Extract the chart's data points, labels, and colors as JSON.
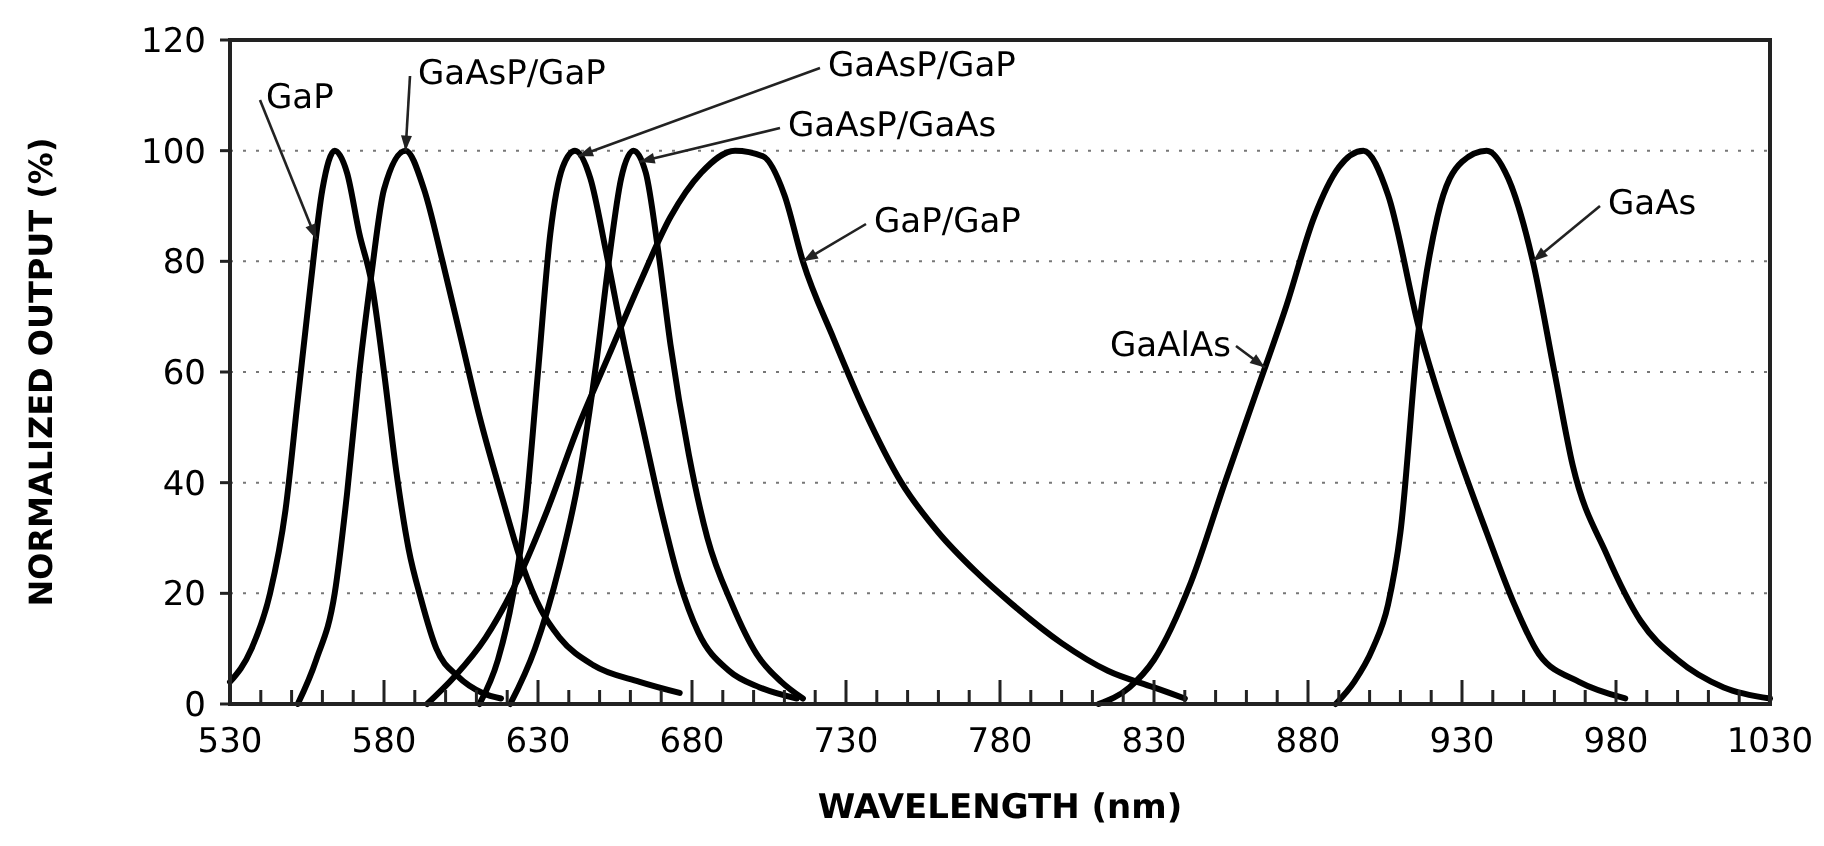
{
  "chart_data": {
    "type": "line",
    "xlabel": "WAVELENGTH (nm)",
    "ylabel": "NORMALIZED OUTPUT (%)",
    "xlim": [
      530,
      1030
    ],
    "ylim": [
      0,
      120
    ],
    "xticks": [
      530,
      {
        "value": 540,
        "label": null
      },
      {
        "value": 550,
        "label": null
      },
      {
        "value": 560,
        "label": null
      },
      {
        "value": 570,
        "label": null
      },
      580,
      {
        "value": 590,
        "label": null
      },
      {
        "value": 600,
        "label": null
      },
      {
        "value": 610,
        "label": null
      },
      {
        "value": 620,
        "label": null
      },
      630,
      {
        "value": 640,
        "label": null
      },
      {
        "value": 650,
        "label": null
      },
      {
        "value": 660,
        "label": null
      },
      {
        "value": 670,
        "label": null
      },
      680,
      {
        "value": 690,
        "label": null
      },
      {
        "value": 700,
        "label": null
      },
      {
        "value": 710,
        "label": null
      },
      {
        "value": 720,
        "label": null
      },
      730,
      {
        "value": 740,
        "label": null
      },
      {
        "value": 750,
        "label": null
      },
      {
        "value": 760,
        "label": null
      },
      {
        "value": 770,
        "label": null
      },
      780,
      {
        "value": 790,
        "label": null
      },
      {
        "value": 800,
        "label": null
      },
      {
        "value": 810,
        "label": null
      },
      {
        "value": 820,
        "label": null
      },
      830,
      {
        "value": 840,
        "label": null
      },
      {
        "value": 850,
        "label": null
      },
      {
        "value": 860,
        "label": null
      },
      {
        "value": 870,
        "label": null
      },
      880,
      {
        "value": 890,
        "label": null
      },
      {
        "value": 900,
        "label": null
      },
      {
        "value": 910,
        "label": null
      },
      {
        "value": 920,
        "label": null
      },
      930,
      {
        "value": 940,
        "label": null
      },
      {
        "value": 950,
        "label": null
      },
      {
        "value": 960,
        "label": null
      },
      {
        "value": 970,
        "label": null
      },
      980,
      {
        "value": 990,
        "label": null
      },
      {
        "value": 1000,
        "label": null
      },
      {
        "value": 1010,
        "label": null
      },
      {
        "value": 1020,
        "label": null
      },
      1030
    ],
    "yticks": [
      0,
      20,
      40,
      60,
      80,
      100,
      120
    ],
    "grid": "y",
    "marker": "none",
    "line_style": "solid",
    "series": [
      {
        "name": "GaP",
        "color": "#000000",
        "x": [
          530,
          537,
          543,
          548,
          552,
          556,
          560,
          564,
          568,
          572,
          576,
          580,
          584,
          588,
          592,
          597,
          604,
          612,
          618
        ],
        "values": [
          4,
          10,
          20,
          35,
          55,
          75,
          93,
          100,
          96,
          85,
          76,
          60,
          42,
          28,
          19,
          10,
          5,
          2,
          1
        ]
      },
      {
        "name": "GaAsP/GaP",
        "color": "#000000",
        "x": [
          552,
          558,
          564,
          568,
          572,
          576,
          580,
          587,
          593,
          599,
          605,
          611,
          618,
          625,
          631,
          637,
          648,
          663,
          676
        ],
        "values": [
          0,
          8,
          20,
          38,
          60,
          78,
          93,
          100,
          93,
          80,
          66,
          52,
          38,
          25,
          17,
          12,
          7,
          4,
          2
        ]
      },
      {
        "name": "GaAsP/GaP",
        "color": "#000000",
        "x": [
          611,
          617,
          622,
          626,
          630,
          634,
          638,
          642,
          647,
          652,
          658,
          664,
          670,
          676,
          682,
          692,
          702,
          714
        ],
        "values": [
          0,
          8,
          20,
          35,
          60,
          85,
          97,
          100,
          95,
          82,
          65,
          50,
          35,
          22,
          13,
          6,
          3,
          1
        ]
      },
      {
        "name": "GaAsP/GaAs",
        "color": "#000000",
        "x": [
          621,
          629,
          637,
          643,
          649,
          653,
          657,
          661,
          665,
          669,
          673,
          679,
          685,
          693,
          701,
          709,
          716
        ],
        "values": [
          0,
          10,
          25,
          40,
          62,
          80,
          95,
          100,
          96,
          82,
          65,
          45,
          30,
          18,
          9,
          4,
          1
        ]
      },
      {
        "name": "GaP/GaP",
        "color": "#000000",
        "x": [
          594,
          603,
          613,
          623,
          633,
          643,
          653,
          663,
          673,
          683,
          694,
          703,
          710,
          716,
          726,
          736,
          748,
          760,
          772,
          784,
          800,
          815,
          830,
          840
        ],
        "values": [
          0,
          5,
          12,
          22,
          35,
          50,
          63,
          76,
          88,
          96,
          100,
          99,
          92,
          80,
          66,
          53,
          40,
          31,
          24,
          18,
          11,
          6,
          3,
          1
        ]
      },
      {
        "name": "GaAlAs",
        "color": "#000000",
        "x": [
          812,
          822,
          830,
          842,
          853,
          863,
          873,
          882,
          890,
          898,
          906,
          916,
          927,
          938,
          947,
          955,
          968,
          983
        ],
        "values": [
          0,
          3,
          8,
          22,
          40,
          56,
          72,
          88,
          97,
          100,
          92,
          68,
          48,
          31,
          18,
          9,
          4,
          1
        ]
      },
      {
        "name": "GaAs",
        "color": "#000000",
        "x": [
          889,
          895,
          901,
          906,
          910,
          916,
          922,
          930,
          938,
          945,
          953,
          960,
          966,
          977,
          988,
          1000,
          1015,
          1030
        ],
        "values": [
          0,
          4,
          10,
          18,
          31,
          68,
          88,
          98,
          100,
          95,
          80,
          60,
          43,
          27,
          15,
          8,
          3,
          1
        ]
      }
    ]
  }
}
